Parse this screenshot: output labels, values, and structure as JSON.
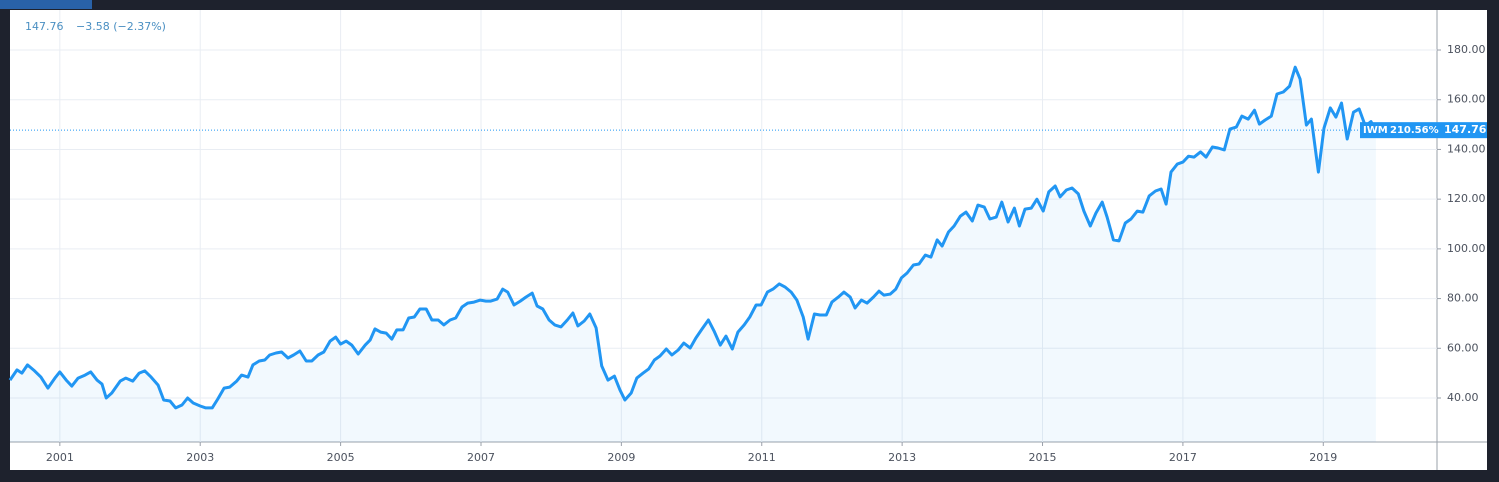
{
  "chart_data": {
    "type": "line",
    "header_change": "−3.58 (−2.37%)",
    "change_label": "210.56%",
    "x": [
      2000.29,
      2000.39,
      2000.46,
      2000.54,
      2000.64,
      2000.73,
      2000.83,
      2000.93,
      2001.0,
      2001.09,
      2001.17,
      2001.26,
      2001.36,
      2001.44,
      2001.53,
      2001.6,
      2001.66,
      2001.74,
      2001.86,
      2001.94,
      2002.04,
      2002.13,
      2002.21,
      2002.3,
      2002.4,
      2002.48,
      2002.57,
      2002.65,
      2002.74,
      2002.82,
      2002.9,
      2003.0,
      2003.08,
      2003.17,
      2003.25,
      2003.34,
      2003.42,
      2003.52,
      2003.59,
      2003.68,
      2003.75,
      2003.84,
      2003.92,
      2003.99,
      2004.08,
      2004.16,
      2004.25,
      2004.33,
      2004.42,
      2004.51,
      2004.59,
      2004.68,
      2004.76,
      2004.85,
      2004.93,
      2005.0,
      2005.08,
      2005.16,
      2005.25,
      2005.35,
      2005.42,
      2005.49,
      2005.57,
      2005.65,
      2005.73,
      2005.8,
      2005.89,
      2005.97,
      2006.05,
      2006.13,
      2006.22,
      2006.3,
      2006.39,
      2006.47,
      2006.56,
      2006.64,
      2006.73,
      2006.81,
      2006.9,
      2006.99,
      2007.07,
      2007.14,
      2007.23,
      2007.31,
      2007.38,
      2007.47,
      2007.56,
      2007.64,
      2007.73,
      2007.8,
      2007.88,
      2007.97,
      2008.05,
      2008.14,
      2008.23,
      2008.31,
      2008.38,
      2008.47,
      2008.55,
      2008.64,
      2008.72,
      2008.81,
      2008.9,
      2008.98,
      2009.05,
      2009.14,
      2009.22,
      2009.31,
      2009.39,
      2009.47,
      2009.55,
      2009.64,
      2009.72,
      2009.81,
      2009.89,
      2009.98,
      2010.06,
      2010.15,
      2010.24,
      2010.32,
      2010.41,
      2010.49,
      2010.58,
      2010.66,
      2010.75,
      2010.83,
      2010.92,
      2010.99,
      2011.08,
      2011.16,
      2011.25,
      2011.33,
      2011.42,
      2011.5,
      2011.59,
      2011.66,
      2011.75,
      2011.83,
      2011.92,
      2012.0,
      2012.09,
      2012.17,
      2012.26,
      2012.33,
      2012.42,
      2012.5,
      2012.59,
      2012.67,
      2012.74,
      2012.83,
      2012.91,
      2012.99,
      2013.07,
      2013.16,
      2013.24,
      2013.33,
      2013.41,
      2013.5,
      2013.57,
      2013.66,
      2013.74,
      2013.83,
      2013.91,
      2014.0,
      2014.08,
      2014.17,
      2014.25,
      2014.34,
      2014.42,
      2014.51,
      2014.6,
      2014.67,
      2014.75,
      2014.84,
      2014.92,
      2015.01,
      2015.09,
      2015.18,
      2015.25,
      2015.34,
      2015.42,
      2015.51,
      2015.59,
      2015.68,
      2015.76,
      2015.85,
      2015.92,
      2016.01,
      2016.09,
      2016.18,
      2016.26,
      2016.35,
      2016.43,
      2016.52,
      2016.61,
      2016.69,
      2016.76,
      2016.83,
      2016.92,
      2017.0,
      2017.08,
      2017.16,
      2017.25,
      2017.33,
      2017.42,
      2017.5,
      2017.59,
      2017.67,
      2017.76,
      2017.84,
      2017.93,
      2018.02,
      2018.09,
      2018.17,
      2018.26,
      2018.34,
      2018.43,
      2018.52,
      2018.6,
      2018.67,
      2018.76,
      2018.83,
      2018.93,
      2019.01,
      2019.1,
      2019.18,
      2019.26,
      2019.34,
      2019.43,
      2019.51,
      2019.6,
      2019.68,
      2019.75
    ],
    "series": [
      {
        "name": "IWM",
        "color": "#2196f3",
        "values": [
          47.2,
          51.3,
          50,
          53.3,
          50.9,
          48.4,
          44,
          48,
          50.5,
          47.2,
          44.8,
          48,
          49.2,
          50.5,
          47.2,
          45.6,
          40,
          42,
          46.8,
          48,
          46.8,
          50,
          50.9,
          48.4,
          45.2,
          39.2,
          38.8,
          36,
          37.2,
          40,
          38,
          36.8,
          36,
          36,
          39.6,
          44,
          44.4,
          46.8,
          49.2,
          48.4,
          53.3,
          54.9,
          55.3,
          57.3,
          58.1,
          58.5,
          56.1,
          57.3,
          58.9,
          54.9,
          54.9,
          57.3,
          58.5,
          62.9,
          64.5,
          61.7,
          62.9,
          61.3,
          57.7,
          61.3,
          63.3,
          67.8,
          66.5,
          66.1,
          63.7,
          67.4,
          67.4,
          72.2,
          72.6,
          75.8,
          75.8,
          71.4,
          71.4,
          69.4,
          71.4,
          72.2,
          76.6,
          78.2,
          78.6,
          79.4,
          79,
          79,
          79.8,
          83.8,
          82.6,
          77.4,
          79,
          80.6,
          82.2,
          77,
          75.8,
          71.4,
          69.4,
          68.6,
          71.4,
          74.2,
          69,
          71,
          73.8,
          68.2,
          52.9,
          47.2,
          48.8,
          43.2,
          39.2,
          42,
          48,
          50,
          51.7,
          55.3,
          56.9,
          59.7,
          57.3,
          59.3,
          62.1,
          60.1,
          64.1,
          67.8,
          71.4,
          67,
          61.3,
          64.9,
          59.7,
          66.5,
          69.4,
          72.6,
          77.4,
          77.4,
          82.6,
          83.8,
          85.9,
          84.7,
          82.6,
          79.4,
          72.6,
          63.7,
          73.8,
          73.4,
          73.4,
          78.6,
          80.6,
          82.6,
          80.6,
          76.2,
          79.4,
          78.2,
          80.6,
          83,
          81.4,
          81.8,
          83.8,
          88.3,
          90.3,
          93.5,
          93.9,
          97.5,
          96.7,
          103.6,
          101.1,
          106.8,
          109.2,
          113.2,
          114.8,
          111.2,
          117.6,
          116.8,
          112,
          112.8,
          118.8,
          110.8,
          116.4,
          109.2,
          116,
          116.4,
          120,
          115.2,
          122.9,
          125.3,
          120.9,
          123.7,
          124.5,
          122.1,
          115.2,
          109.2,
          114.4,
          118.8,
          112.8,
          103.6,
          103.2,
          110.4,
          112,
          115.2,
          114.8,
          121.3,
          123.3,
          124.1,
          118,
          130.9,
          134.1,
          134.9,
          137.3,
          136.9,
          139,
          136.9,
          141,
          140.6,
          139.8,
          148.2,
          149,
          153.4,
          152.2,
          155.8,
          150.2,
          151.8,
          153.4,
          162.3,
          163.1,
          165.5,
          173.1,
          168.3,
          149.8,
          152.2,
          130.9,
          148.6,
          156.7,
          153,
          158.7,
          144.2,
          155,
          156.3,
          149.4,
          151.2,
          147.76
        ]
      }
    ],
    "xlim": [
      2000.29,
      2020.62
    ],
    "ylim": [
      22.3,
      196.1
    ],
    "xticks": [
      2001,
      2003,
      2005,
      2007,
      2009,
      2011,
      2013,
      2015,
      2017,
      2019
    ],
    "yticks": [
      {
        "value": 40,
        "label": "40.00"
      },
      {
        "value": 60,
        "label": "60.00"
      },
      {
        "value": 80,
        "label": "80.00"
      },
      {
        "value": 100,
        "label": "100.00"
      },
      {
        "value": 120,
        "label": "120.00"
      },
      {
        "value": 140,
        "label": "140.00"
      },
      {
        "value": 160,
        "label": "160.00"
      },
      {
        "value": 180,
        "label": "180.00"
      }
    ],
    "grid": true,
    "last_value_line": true
  }
}
